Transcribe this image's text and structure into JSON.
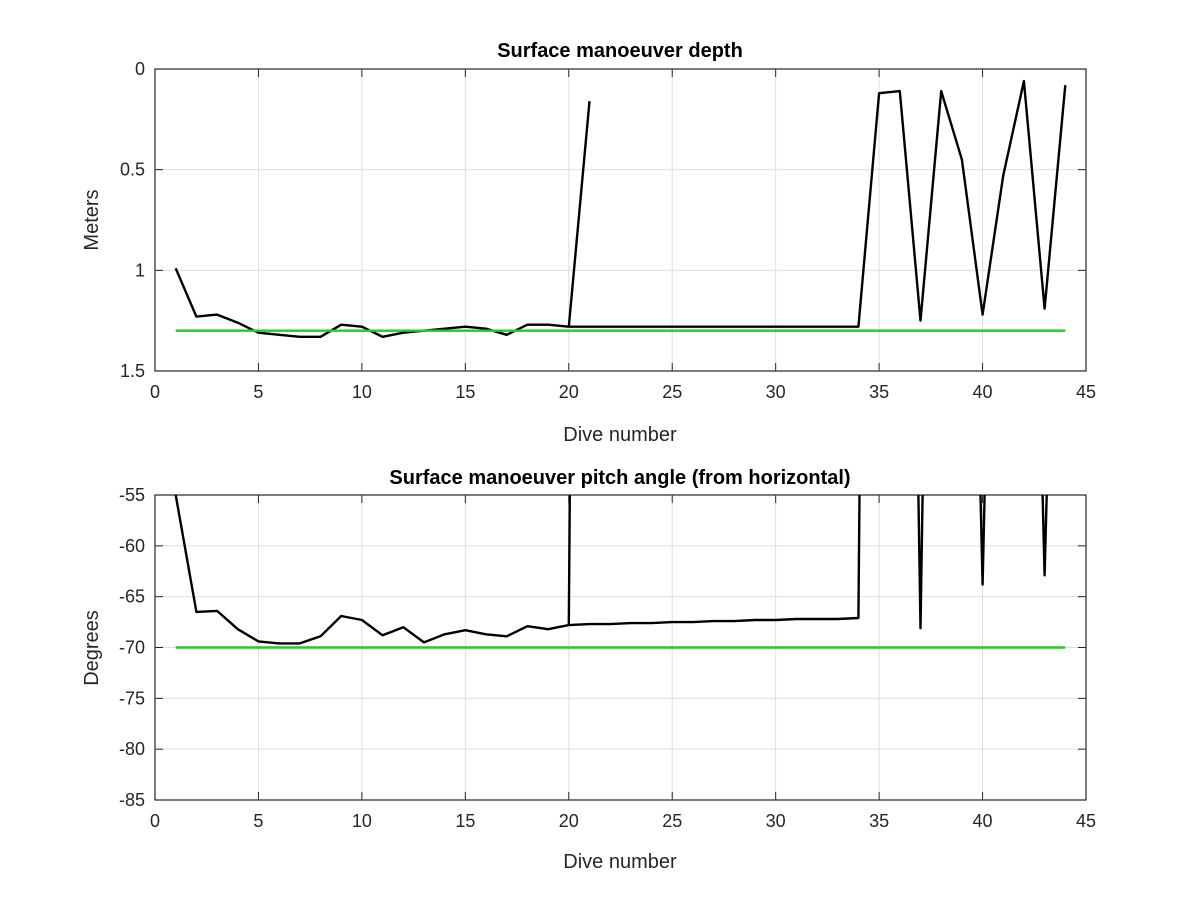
{
  "chart_data": [
    {
      "type": "line",
      "title": "Surface manoeuver depth",
      "xlabel": "Dive number",
      "ylabel": "Meters",
      "xlim": [
        0,
        45
      ],
      "ylim": [
        0,
        1.5
      ],
      "y_reversed": true,
      "grid": true,
      "xticks": [
        "0",
        "5",
        "10",
        "15",
        "20",
        "25",
        "30",
        "35",
        "40",
        "45"
      ],
      "yticks": [
        "0",
        "0.5",
        "1",
        "1.5"
      ],
      "series": [
        {
          "color": "#000000",
          "x": [
            1,
            2,
            3,
            4,
            5,
            6,
            7,
            8,
            9,
            10,
            11,
            12,
            13,
            14,
            15,
            16,
            17,
            18,
            19,
            20,
            21,
            null,
            20,
            21,
            22,
            23,
            24,
            25,
            26,
            27,
            28,
            29,
            30,
            31,
            32,
            33,
            34,
            35,
            36,
            37,
            38,
            39,
            40,
            41,
            42,
            43,
            44
          ],
          "y": [
            0.99,
            1.23,
            1.22,
            1.26,
            1.31,
            1.32,
            1.33,
            1.33,
            1.27,
            1.28,
            1.33,
            1.31,
            1.3,
            1.29,
            1.28,
            1.29,
            1.32,
            1.27,
            1.27,
            1.28,
            0.16,
            null,
            1.28,
            1.28,
            1.28,
            1.28,
            1.28,
            1.28,
            1.28,
            1.28,
            1.28,
            1.28,
            1.28,
            1.28,
            1.28,
            1.28,
            1.28,
            0.12,
            0.11,
            1.25,
            0.11,
            0.45,
            1.22,
            0.53,
            0.06,
            1.19,
            0.08
          ]
        },
        {
          "color": "#22cc22",
          "x": [
            1,
            44
          ],
          "y": [
            1.3,
            1.3
          ]
        }
      ]
    },
    {
      "type": "line",
      "title": "Surface manoeuver pitch angle (from horizontal)",
      "xlabel": "Dive number",
      "ylabel": "Degrees",
      "xlim": [
        0,
        45
      ],
      "ylim": [
        -85,
        -55
      ],
      "grid": true,
      "xticks": [
        "0",
        "5",
        "10",
        "15",
        "20",
        "25",
        "30",
        "35",
        "40",
        "45"
      ],
      "yticks": [
        "-55",
        "-60",
        "-65",
        "-70",
        "-75",
        "-80",
        "-85"
      ],
      "series": [
        {
          "color": "#000000",
          "x": [
            1,
            2,
            3,
            4,
            5,
            6,
            7,
            8,
            9,
            10,
            11,
            12,
            13,
            14,
            15,
            16,
            17,
            18,
            19,
            20,
            20.05,
            null,
            20,
            21,
            22,
            23,
            24,
            25,
            26,
            27,
            28,
            29,
            30,
            31,
            32,
            33,
            34,
            34.05,
            null,
            36.9,
            37,
            37.1,
            null,
            39.9,
            40,
            40.1,
            null,
            42.9,
            43,
            43.1
          ],
          "y": [
            -55,
            -66.5,
            -66.4,
            -68.2,
            -69.4,
            -69.6,
            -69.6,
            -68.9,
            -66.9,
            -67.3,
            -68.8,
            -68.0,
            -69.5,
            -68.7,
            -68.3,
            -68.7,
            -68.9,
            -67.9,
            -68.2,
            -67.8,
            -55,
            null,
            -67.8,
            -67.7,
            -67.7,
            -67.6,
            -67.6,
            -67.5,
            -67.5,
            -67.4,
            -67.4,
            -67.3,
            -67.3,
            -67.2,
            -67.2,
            -67.2,
            -67.1,
            -55,
            null,
            -55,
            -68.1,
            -55,
            null,
            -55,
            -63.8,
            -55,
            null,
            -55,
            -62.9,
            -55
          ]
        },
        {
          "color": "#22cc22",
          "x": [
            1,
            44
          ],
          "y": [
            -70,
            -70
          ]
        }
      ]
    }
  ]
}
